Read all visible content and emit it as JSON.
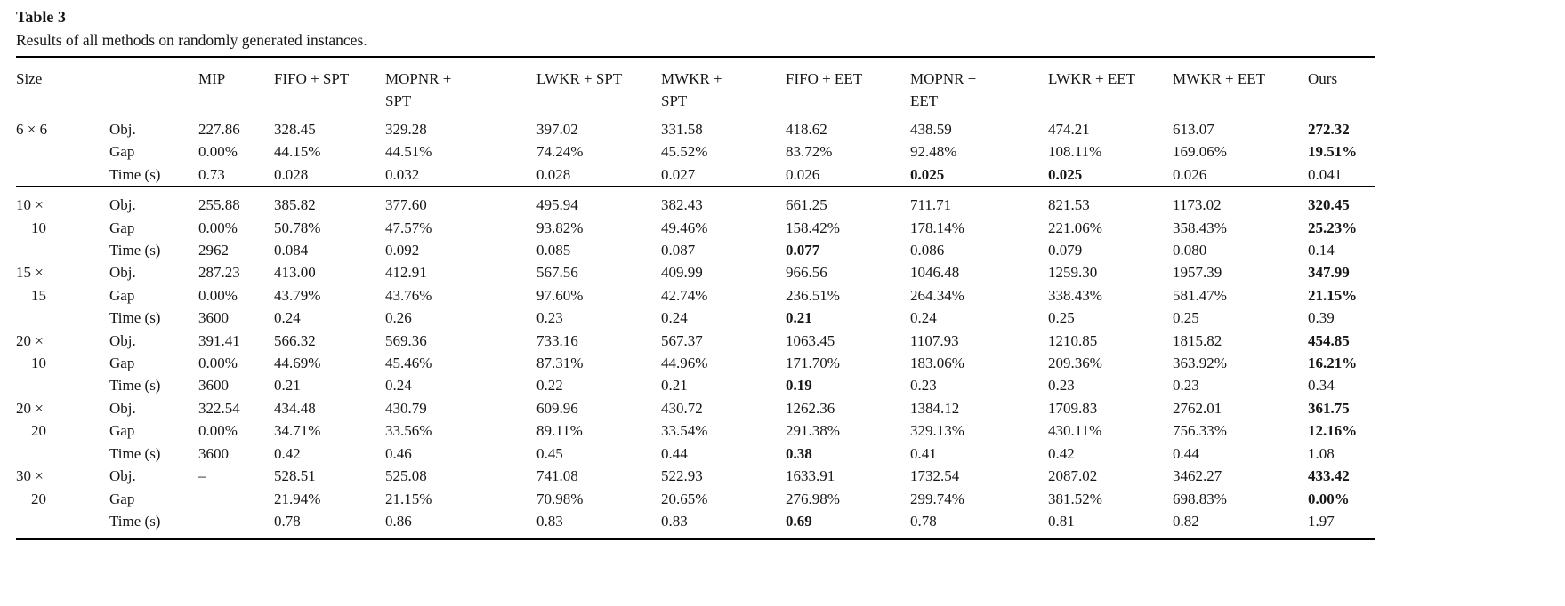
{
  "title": "Table 3",
  "caption": "Results of all methods on randomly generated instances.",
  "table": {
    "columns": [
      "Size",
      "",
      "MIP",
      "FIFO + SPT",
      "MOPNR +\nSPT",
      "LWKR + SPT",
      "MWKR +\nSPT",
      "FIFO + EET",
      "MOPNR +\nEET",
      "LWKR + EET",
      "MWKR + EET",
      "Ours"
    ],
    "groups": [
      {
        "size_line1": "6 × 6",
        "size_line2": "",
        "rows": [
          {
            "metric": "Obj.",
            "values": [
              "227.86",
              "328.45",
              "329.28",
              "397.02",
              "331.58",
              "418.62",
              "438.59",
              "474.21",
              "613.07",
              "272.32"
            ],
            "bold": [
              false,
              false,
              false,
              false,
              false,
              false,
              false,
              false,
              false,
              true
            ]
          },
          {
            "metric": "Gap",
            "values": [
              "0.00%",
              "44.15%",
              "44.51%",
              "74.24%",
              "45.52%",
              "83.72%",
              "92.48%",
              "108.11%",
              "169.06%",
              "19.51%"
            ],
            "bold": [
              false,
              false,
              false,
              false,
              false,
              false,
              false,
              false,
              false,
              true
            ]
          },
          {
            "metric": "Time (s)",
            "values": [
              "0.73",
              "0.028",
              "0.032",
              "0.028",
              "0.027",
              "0.026",
              "0.025",
              "0.025",
              "0.026",
              "0.041"
            ],
            "bold": [
              false,
              false,
              false,
              false,
              false,
              false,
              true,
              true,
              false,
              false
            ]
          }
        ]
      },
      {
        "size_line1": "10 ×",
        "size_line2": "10",
        "rows": [
          {
            "metric": "Obj.",
            "values": [
              "255.88",
              "385.82",
              "377.60",
              "495.94",
              "382.43",
              "661.25",
              "711.71",
              "821.53",
              "1173.02",
              "320.45"
            ],
            "bold": [
              false,
              false,
              false,
              false,
              false,
              false,
              false,
              false,
              false,
              true
            ]
          },
          {
            "metric": "Gap",
            "values": [
              "0.00%",
              "50.78%",
              "47.57%",
              "93.82%",
              "49.46%",
              "158.42%",
              "178.14%",
              "221.06%",
              "358.43%",
              "25.23%"
            ],
            "bold": [
              false,
              false,
              false,
              false,
              false,
              false,
              false,
              false,
              false,
              true
            ]
          },
          {
            "metric": "Time (s)",
            "values": [
              "2962",
              "0.084",
              "0.092",
              "0.085",
              "0.087",
              "0.077",
              "0.086",
              "0.079",
              "0.080",
              "0.14"
            ],
            "bold": [
              false,
              false,
              false,
              false,
              false,
              true,
              false,
              false,
              false,
              false
            ]
          }
        ]
      },
      {
        "size_line1": "15 ×",
        "size_line2": "15",
        "rows": [
          {
            "metric": "Obj.",
            "values": [
              "287.23",
              "413.00",
              "412.91",
              "567.56",
              "409.99",
              "966.56",
              "1046.48",
              "1259.30",
              "1957.39",
              "347.99"
            ],
            "bold": [
              false,
              false,
              false,
              false,
              false,
              false,
              false,
              false,
              false,
              true
            ]
          },
          {
            "metric": "Gap",
            "values": [
              "0.00%",
              "43.79%",
              "43.76%",
              "97.60%",
              "42.74%",
              "236.51%",
              "264.34%",
              "338.43%",
              "581.47%",
              "21.15%"
            ],
            "bold": [
              false,
              false,
              false,
              false,
              false,
              false,
              false,
              false,
              false,
              true
            ]
          },
          {
            "metric": "Time (s)",
            "values": [
              "3600",
              "0.24",
              "0.26",
              "0.23",
              "0.24",
              "0.21",
              "0.24",
              "0.25",
              "0.25",
              "0.39"
            ],
            "bold": [
              false,
              false,
              false,
              false,
              false,
              true,
              false,
              false,
              false,
              false
            ]
          }
        ]
      },
      {
        "size_line1": "20 ×",
        "size_line2": "10",
        "rows": [
          {
            "metric": "Obj.",
            "values": [
              "391.41",
              "566.32",
              "569.36",
              "733.16",
              "567.37",
              "1063.45",
              "1107.93",
              "1210.85",
              "1815.82",
              "454.85"
            ],
            "bold": [
              false,
              false,
              false,
              false,
              false,
              false,
              false,
              false,
              false,
              true
            ]
          },
          {
            "metric": "Gap",
            "values": [
              "0.00%",
              "44.69%",
              "45.46%",
              "87.31%",
              "44.96%",
              "171.70%",
              "183.06%",
              "209.36%",
              "363.92%",
              "16.21%"
            ],
            "bold": [
              false,
              false,
              false,
              false,
              false,
              false,
              false,
              false,
              false,
              true
            ]
          },
          {
            "metric": "Time (s)",
            "values": [
              "3600",
              "0.21",
              "0.24",
              "0.22",
              "0.21",
              "0.19",
              "0.23",
              "0.23",
              "0.23",
              "0.34"
            ],
            "bold": [
              false,
              false,
              false,
              false,
              false,
              true,
              false,
              false,
              false,
              false
            ]
          }
        ]
      },
      {
        "size_line1": "20 ×",
        "size_line2": "20",
        "rows": [
          {
            "metric": "Obj.",
            "values": [
              "322.54",
              "434.48",
              "430.79",
              "609.96",
              "430.72",
              "1262.36",
              "1384.12",
              "1709.83",
              "2762.01",
              "361.75"
            ],
            "bold": [
              false,
              false,
              false,
              false,
              false,
              false,
              false,
              false,
              false,
              true
            ]
          },
          {
            "metric": "Gap",
            "values": [
              "0.00%",
              "34.71%",
              "33.56%",
              "89.11%",
              "33.54%",
              "291.38%",
              "329.13%",
              "430.11%",
              "756.33%",
              "12.16%"
            ],
            "bold": [
              false,
              false,
              false,
              false,
              false,
              false,
              false,
              false,
              false,
              true
            ]
          },
          {
            "metric": "Time (s)",
            "values": [
              "3600",
              "0.42",
              "0.46",
              "0.45",
              "0.44",
              "0.38",
              "0.41",
              "0.42",
              "0.44",
              "1.08"
            ],
            "bold": [
              false,
              false,
              false,
              false,
              false,
              true,
              false,
              false,
              false,
              false
            ]
          }
        ]
      },
      {
        "size_line1": "30 ×",
        "size_line2": "20",
        "rows": [
          {
            "metric": "Obj.",
            "values": [
              "–",
              "528.51",
              "525.08",
              "741.08",
              "522.93",
              "1633.91",
              "1732.54",
              "2087.02",
              "3462.27",
              "433.42"
            ],
            "bold": [
              false,
              false,
              false,
              false,
              false,
              false,
              false,
              false,
              false,
              true
            ]
          },
          {
            "metric": "Gap",
            "values": [
              "",
              "21.94%",
              "21.15%",
              "70.98%",
              "20.65%",
              "276.98%",
              "299.74%",
              "381.52%",
              "698.83%",
              "0.00%"
            ],
            "bold": [
              false,
              false,
              false,
              false,
              false,
              false,
              false,
              false,
              false,
              true
            ]
          },
          {
            "metric": "Time (s)",
            "values": [
              "",
              "0.78",
              "0.86",
              "0.83",
              "0.83",
              "0.69",
              "0.78",
              "0.81",
              "0.82",
              "1.97"
            ],
            "bold": [
              false,
              false,
              false,
              false,
              false,
              true,
              false,
              false,
              false,
              false
            ]
          }
        ]
      }
    ]
  }
}
